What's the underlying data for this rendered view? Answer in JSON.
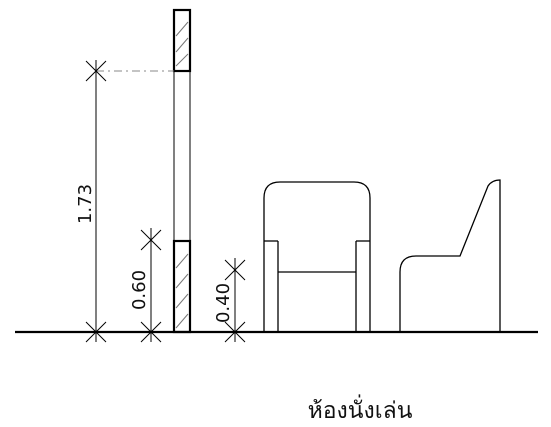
{
  "dimensions": {
    "window_sill_height": "1.73",
    "lower_panel_height": "0.60",
    "seat_height": "0.40"
  },
  "caption": "ห้องนั่งเล่น",
  "colors": {
    "line": "#000000",
    "hatch": "#777777",
    "dash": "#888888"
  }
}
